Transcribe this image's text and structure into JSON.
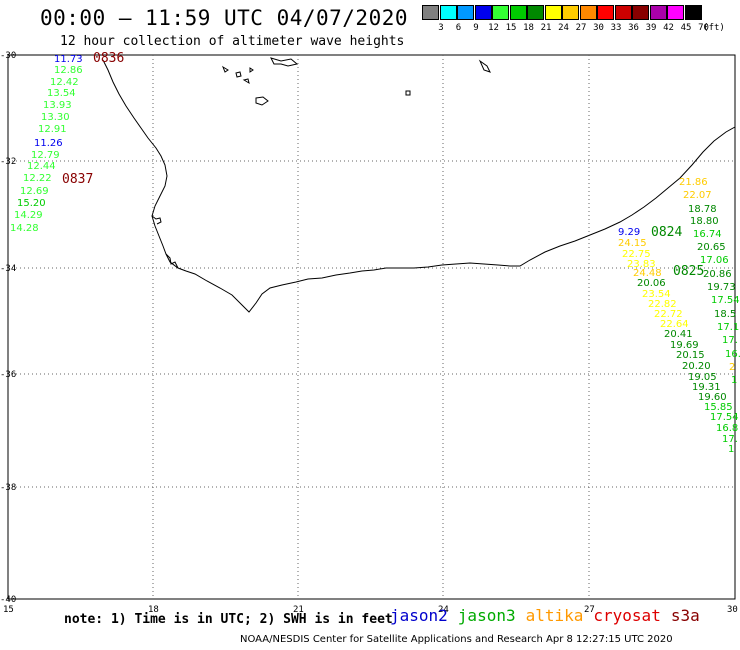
{
  "header": {
    "title": "00:00 – 11:59 UTC 04/07/2020",
    "subtitle": "12 hour collection of altimeter wave heights"
  },
  "colorbar": {
    "unit": "(ft)",
    "bins": [
      {
        "label": "3",
        "color": "#808080"
      },
      {
        "label": "6",
        "color": "#00ffff"
      },
      {
        "label": "9",
        "color": "#0099ff"
      },
      {
        "label": "12",
        "color": "#0000ee"
      },
      {
        "label": "15",
        "color": "#33ff33"
      },
      {
        "label": "18",
        "color": "#00cc00"
      },
      {
        "label": "21",
        "color": "#008800"
      },
      {
        "label": "24",
        "color": "#ffff00"
      },
      {
        "label": "27",
        "color": "#ffcc00"
      },
      {
        "label": "30",
        "color": "#ff8800"
      },
      {
        "label": "33",
        "color": "#ff0000"
      },
      {
        "label": "36",
        "color": "#cc0000"
      },
      {
        "label": "39",
        "color": "#880000"
      },
      {
        "label": "42",
        "color": "#aa00aa"
      },
      {
        "label": "45",
        "color": "#ff00ff"
      },
      {
        "label": "70",
        "color": "#000000"
      }
    ]
  },
  "axes": {
    "lon_labels": [
      "15",
      "18",
      "21",
      "24",
      "27",
      "30"
    ],
    "lat_labels": [
      "-30",
      "-32",
      "-34",
      "-36",
      "-38",
      "-40"
    ]
  },
  "passes": [
    {
      "label": "0836",
      "color": "#880000"
    },
    {
      "label": "0837",
      "color": "#880000"
    },
    {
      "label": "0824",
      "color": "#008800"
    },
    {
      "label": "0825",
      "color": "#008800"
    }
  ],
  "west_track": [
    {
      "v": "11.73",
      "color": "#0000ee"
    },
    {
      "v": "12.86",
      "color": "#33ff33"
    },
    {
      "v": "12.42",
      "color": "#33ff33"
    },
    {
      "v": "13.54",
      "color": "#33ff33"
    },
    {
      "v": "13.93",
      "color": "#33ff33"
    },
    {
      "v": "13.30",
      "color": "#33ff33"
    },
    {
      "v": "12.91",
      "color": "#33ff33"
    },
    {
      "v": "11.26",
      "color": "#0000ee"
    },
    {
      "v": "12.79",
      "color": "#33ff33"
    },
    {
      "v": "12.44",
      "color": "#33ff33"
    },
    {
      "v": "12.22",
      "color": "#33ff33"
    },
    {
      "v": "12.69",
      "color": "#33ff33"
    },
    {
      "v": "15.20",
      "color": "#00cc00"
    },
    {
      "v": "14.29",
      "color": "#33ff33"
    },
    {
      "v": "14.28",
      "color": "#33ff33"
    }
  ],
  "east_track_a": [
    {
      "v": "21.86",
      "color": "#ffcc00"
    },
    {
      "v": "22.07",
      "color": "#ffcc00"
    },
    {
      "v": "18.78",
      "color": "#008800"
    },
    {
      "v": "18.80",
      "color": "#008800"
    },
    {
      "v": "16.74",
      "color": "#00cc00"
    },
    {
      "v": "20.65",
      "color": "#008800"
    },
    {
      "v": "17.06",
      "color": "#00cc00"
    },
    {
      "v": "20.86",
      "color": "#008800"
    },
    {
      "v": "19.73",
      "color": "#008800"
    },
    {
      "v": "17.54",
      "color": "#00cc00"
    },
    {
      "v": "18.5",
      "color": "#008800"
    },
    {
      "v": "17.1",
      "color": "#00cc00"
    },
    {
      "v": "17.",
      "color": "#00cc00"
    },
    {
      "v": "16.",
      "color": "#00cc00"
    },
    {
      "v": "2",
      "color": "#ffcc00"
    },
    {
      "v": "1",
      "color": "#00cc00"
    }
  ],
  "east_track_b": [
    {
      "v": "9.29",
      "color": "#0000ee"
    },
    {
      "v": "24.15",
      "color": "#ffcc00"
    },
    {
      "v": "22.75",
      "color": "#ffff00"
    },
    {
      "v": "23.83",
      "color": "#ffff00"
    },
    {
      "v": "24.48",
      "color": "#ffcc00"
    },
    {
      "v": "20.06",
      "color": "#008800"
    },
    {
      "v": "23.54",
      "color": "#ffff00"
    },
    {
      "v": "22.82",
      "color": "#ffff00"
    },
    {
      "v": "22.72",
      "color": "#ffff00"
    },
    {
      "v": "22.64",
      "color": "#ffff00"
    },
    {
      "v": "20.41",
      "color": "#008800"
    },
    {
      "v": "19.69",
      "color": "#008800"
    },
    {
      "v": "20.15",
      "color": "#008800"
    },
    {
      "v": "20.20",
      "color": "#008800"
    },
    {
      "v": "19.05",
      "color": "#008800"
    },
    {
      "v": "19.31",
      "color": "#008800"
    },
    {
      "v": "19.60",
      "color": "#008800"
    },
    {
      "v": "15.85",
      "color": "#00cc00"
    },
    {
      "v": "17.54",
      "color": "#00cc00"
    },
    {
      "v": "16.8",
      "color": "#00cc00"
    },
    {
      "v": "17.",
      "color": "#00cc00"
    },
    {
      "v": "1",
      "color": "#00cc00"
    }
  ],
  "footer": {
    "note": "note: 1) Time is in UTC; 2) SWH is in feet",
    "legend": [
      {
        "name": "jason2",
        "color": "#0000cc"
      },
      {
        "name": "jason3",
        "color": "#00aa00"
      },
      {
        "name": "altika",
        "color": "#ff9900"
      },
      {
        "name": "cryosat",
        "color": "#dd0000"
      },
      {
        "name": "s3a",
        "color": "#880000"
      }
    ],
    "credit": "NOAA/NESDIS Center for Satellite Applications and Research   Apr  8 12:27:15 UTC 2020"
  }
}
